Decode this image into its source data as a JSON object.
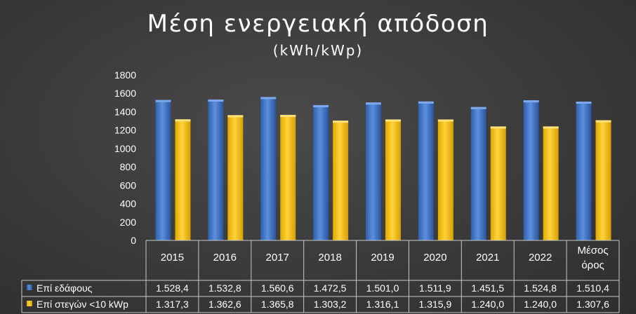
{
  "chart_data": {
    "type": "bar",
    "title": "Μέση ενεργειακή απόδοση",
    "subtitle": "(kWh/kWp)",
    "categories": [
      "2015",
      "2016",
      "2017",
      "2018",
      "2019",
      "2020",
      "2021",
      "2022",
      "Μέσος όρος"
    ],
    "series": [
      {
        "name": "Επί εδάφους",
        "color": "#3d73c7",
        "values": [
          1528.4,
          1532.8,
          1560.6,
          1472.5,
          1501.0,
          1511.9,
          1451.5,
          1524.8,
          1510.4
        ],
        "labels": [
          "1.528,4",
          "1.532,8",
          "1.560,6",
          "1.472,5",
          "1.501,0",
          "1.511,9",
          "1.451,5",
          "1.524,8",
          "1.510,4"
        ]
      },
      {
        "name": "Επί στεγών <10 kWp",
        "color": "#ffc000",
        "values": [
          1317.3,
          1362.6,
          1365.8,
          1303.2,
          1316.1,
          1315.9,
          1240.0,
          1240.0,
          1307.6
        ],
        "labels": [
          "1.317,3",
          "1.362,6",
          "1.365,8",
          "1.303,2",
          "1.316,1",
          "1.315,9",
          "1.240,0",
          "1.240,0",
          "1.307,6"
        ]
      }
    ],
    "ylim": [
      0,
      1800
    ],
    "yticks": [
      "0",
      "200",
      "400",
      "600",
      "800",
      "1000",
      "1200",
      "1400",
      "1600",
      "1800"
    ],
    "grid": false,
    "legend": "data-table"
  }
}
